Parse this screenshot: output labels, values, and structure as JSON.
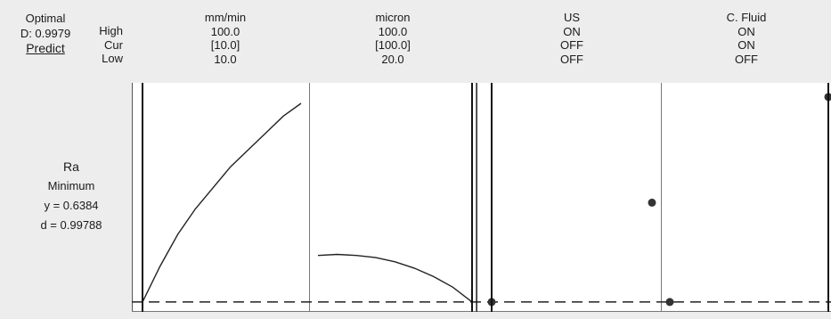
{
  "optimizer": {
    "title": "Optimal",
    "desirability": "D: 0.9979",
    "predict_label": "Predict"
  },
  "row_labels": {
    "high": "High",
    "cur": "Cur",
    "low": "Low"
  },
  "factors": [
    {
      "name": "mm/min",
      "high": "100.0",
      "cur": "[10.0]",
      "low": "10.0"
    },
    {
      "name": "micron",
      "high": "100.0",
      "cur": "[100.0]",
      "low": "20.0"
    },
    {
      "name": "US",
      "high": "ON",
      "cur": "OFF",
      "low": "OFF"
    },
    {
      "name": "C. Fluid",
      "high": "ON",
      "cur": "ON",
      "low": "OFF"
    }
  ],
  "response": {
    "name": "Ra",
    "goal": "Minimum",
    "y_text": "y = 0.6384",
    "d_text": "d = 0.99788"
  },
  "chart_data": {
    "type": "line",
    "panels": [
      {
        "factor": "mm/min",
        "kind": "continuous",
        "xlim": [
          10,
          100
        ],
        "current_x": 10,
        "x": [
          10,
          20,
          30,
          40,
          50,
          60,
          70,
          80,
          90,
          100
        ],
        "y": [
          0.03,
          0.2,
          0.35,
          0.47,
          0.57,
          0.67,
          0.75,
          0.83,
          0.91,
          0.97
        ]
      },
      {
        "factor": "micron",
        "kind": "continuous",
        "xlim": [
          20,
          100
        ],
        "current_x": 100,
        "x": [
          20,
          30,
          40,
          50,
          60,
          70,
          80,
          90,
          100
        ],
        "y": [
          0.25,
          0.255,
          0.25,
          0.24,
          0.22,
          0.19,
          0.15,
          0.1,
          0.03
        ]
      },
      {
        "factor": "US",
        "kind": "categorical",
        "levels": [
          "OFF",
          "ON"
        ],
        "current_level": "OFF",
        "y": [
          0.03,
          0.5
        ]
      },
      {
        "factor": "C. Fluid",
        "kind": "categorical",
        "levels": [
          "OFF",
          "ON"
        ],
        "current_level": "ON",
        "y": [
          0.03,
          1.0
        ]
      }
    ],
    "reference_y": 0.03,
    "ylim": [
      0,
      1.05
    ]
  }
}
